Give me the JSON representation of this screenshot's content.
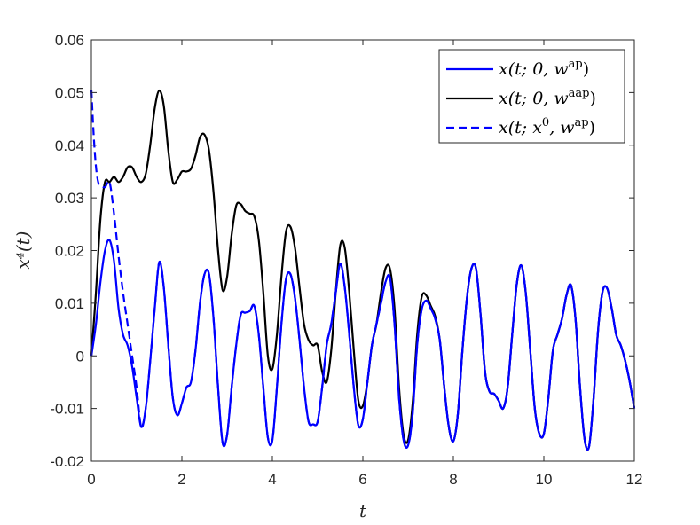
{
  "chart_data": {
    "type": "line",
    "xlabel": "t",
    "ylabel": "x⁴(t)",
    "xlim": [
      0,
      12
    ],
    "ylim": [
      -0.02,
      0.06
    ],
    "xticks": [
      0,
      2,
      4,
      6,
      8,
      10,
      12
    ],
    "yticks": [
      -0.02,
      -0.01,
      0,
      0.01,
      0.02,
      0.03,
      0.04,
      0.05,
      0.06
    ],
    "ytick_labels": [
      "-0.02",
      "-0.01",
      "0",
      "0.01",
      "0.02",
      "0.03",
      "0.04",
      "0.05",
      "0.06"
    ],
    "grid": false,
    "legend_position": "top-right",
    "series": [
      {
        "name": "x(t; 0, w^ap)",
        "color": "#0000ff",
        "style": "solid",
        "x": [
          0,
          0.1,
          0.2,
          0.3,
          0.4,
          0.5,
          0.6,
          0.7,
          0.8,
          0.9,
          1.0,
          1.1,
          1.2,
          1.3,
          1.4,
          1.5,
          1.6,
          1.7,
          1.8,
          1.9,
          2.0,
          2.1,
          2.2,
          2.3,
          2.4,
          2.5,
          2.6,
          2.7,
          2.8,
          2.9,
          3.0,
          3.1,
          3.2,
          3.3,
          3.4,
          3.5,
          3.6,
          3.7,
          3.8,
          3.9,
          4.0,
          4.1,
          4.2,
          4.3,
          4.4,
          4.5,
          4.6,
          4.7,
          4.8,
          4.9,
          5.0,
          5.1,
          5.2,
          5.3,
          5.4,
          5.5,
          5.6,
          5.7,
          5.8,
          5.9,
          6.0,
          6.1,
          6.2,
          6.3,
          6.4,
          6.5,
          6.6,
          6.7,
          6.8,
          6.9,
          7.0,
          7.1,
          7.2,
          7.3,
          7.4,
          7.5,
          7.6,
          7.7,
          7.8,
          7.9,
          8.0,
          8.1,
          8.2,
          8.3,
          8.4,
          8.5,
          8.6,
          8.7,
          8.8,
          8.9,
          9.0,
          9.1,
          9.2,
          9.3,
          9.4,
          9.5,
          9.6,
          9.7,
          9.8,
          9.9,
          10.0,
          10.1,
          10.2,
          10.3,
          10.4,
          10.5,
          10.6,
          10.7,
          10.8,
          10.9,
          11.0,
          11.1,
          11.2,
          11.3,
          11.4,
          11.5,
          11.6,
          11.7,
          11.8,
          11.9,
          12.0
        ],
        "y": [
          0,
          0.006,
          0.014,
          0.02,
          0.022,
          0.018,
          0.009,
          0.004,
          0.002,
          -0.002,
          -0.008,
          -0.0135,
          -0.01,
          -0.001,
          0.009,
          0.0178,
          0.013,
          0.002,
          -0.008,
          -0.0113,
          -0.009,
          -0.006,
          -0.005,
          0.001,
          0.01,
          0.0155,
          0.0155,
          0.007,
          -0.006,
          -0.0165,
          -0.015,
          -0.006,
          0.002,
          0.0078,
          0.0082,
          0.0085,
          0.0095,
          0.004,
          -0.006,
          -0.0155,
          -0.016,
          -0.006,
          0.006,
          0.0145,
          0.0155,
          0.011,
          0.003,
          -0.006,
          -0.0125,
          -0.013,
          -0.0125,
          -0.006,
          0.002,
          0.006,
          0.012,
          0.0175,
          0.013,
          0.004,
          -0.006,
          -0.0132,
          -0.012,
          -0.005,
          0.002,
          0.006,
          0.01,
          0.014,
          0.0148,
          0.006,
          -0.008,
          -0.016,
          -0.017,
          -0.011,
          0.002,
          0.0088,
          0.0105,
          0.009,
          0.007,
          0.003,
          -0.006,
          -0.0135,
          -0.0162,
          -0.011,
          0.001,
          0.011,
          0.0166,
          0.0166,
          0.008,
          -0.003,
          -0.0068,
          -0.0072,
          -0.0085,
          -0.01,
          -0.006,
          0.004,
          0.0135,
          0.0172,
          0.012,
          0.001,
          -0.01,
          -0.0148,
          -0.0148,
          -0.008,
          0.001,
          0.004,
          0.007,
          0.0115,
          0.0134,
          0.007,
          -0.006,
          -0.0158,
          -0.0172,
          -0.008,
          0.005,
          0.0123,
          0.0128,
          0.009,
          0.004,
          0.002,
          -0.001,
          -0.005,
          -0.01
        ]
      },
      {
        "name": "x(t; 0, w^aap)",
        "color": "#000000",
        "style": "solid",
        "x": [
          0,
          0.1,
          0.2,
          0.3,
          0.4,
          0.5,
          0.6,
          0.7,
          0.8,
          0.9,
          1.0,
          1.1,
          1.2,
          1.3,
          1.4,
          1.5,
          1.6,
          1.7,
          1.8,
          1.9,
          2.0,
          2.1,
          2.2,
          2.3,
          2.4,
          2.5,
          2.6,
          2.7,
          2.8,
          2.9,
          3.0,
          3.1,
          3.2,
          3.3,
          3.4,
          3.5,
          3.6,
          3.7,
          3.8,
          3.9,
          4.0,
          4.1,
          4.2,
          4.3,
          4.4,
          4.5,
          4.6,
          4.7,
          4.8,
          4.9,
          5.0,
          5.1,
          5.2,
          5.3,
          5.4,
          5.5,
          5.6,
          5.7,
          5.8,
          5.9,
          6.0,
          6.1,
          6.2,
          6.3,
          6.4,
          6.5,
          6.6,
          6.7,
          6.8,
          6.9,
          7.0,
          7.1,
          7.2,
          7.3,
          7.4,
          7.5,
          7.6,
          7.7,
          7.8,
          7.9,
          8.0,
          8.1,
          8.2,
          8.3,
          8.4,
          8.5,
          8.6,
          8.7,
          8.8,
          8.9,
          9.0,
          9.1,
          9.2,
          9.3,
          9.4,
          9.5,
          9.6,
          9.7,
          9.8,
          9.9,
          10.0,
          10.1,
          10.2,
          10.3,
          10.4,
          10.5,
          10.6,
          10.7,
          10.8,
          10.9,
          11.0,
          11.1,
          11.2,
          11.3,
          11.4,
          11.5,
          11.6,
          11.7,
          11.8,
          11.9,
          12.0
        ],
        "y": [
          0,
          0.012,
          0.026,
          0.033,
          0.033,
          0.034,
          0.033,
          0.034,
          0.0358,
          0.0358,
          0.034,
          0.033,
          0.0345,
          0.04,
          0.047,
          0.0504,
          0.0475,
          0.039,
          0.033,
          0.0335,
          0.035,
          0.035,
          0.0355,
          0.038,
          0.0415,
          0.042,
          0.039,
          0.031,
          0.02,
          0.0125,
          0.015,
          0.023,
          0.0285,
          0.0288,
          0.0275,
          0.027,
          0.0265,
          0.022,
          0.012,
          0.0,
          -0.0025,
          0.004,
          0.015,
          0.0235,
          0.0245,
          0.0205,
          0.013,
          0.006,
          0.003,
          0.002,
          0.002,
          -0.003,
          -0.005,
          0.001,
          0.012,
          0.021,
          0.0205,
          0.012,
          0.001,
          -0.0085,
          -0.0095,
          -0.005,
          0.002,
          0.006,
          0.012,
          0.0166,
          0.0165,
          0.009,
          -0.006,
          -0.015,
          -0.016,
          -0.009,
          0.004,
          0.0112,
          0.0115,
          0.0095,
          0.0075,
          0.003,
          -0.006,
          -0.0135,
          -0.0162,
          -0.011,
          0.001,
          0.011,
          0.0166,
          0.0166,
          0.008,
          -0.003,
          -0.0068,
          -0.0072,
          -0.0085,
          -0.01,
          -0.006,
          0.004,
          0.0135,
          0.0172,
          0.012,
          0.001,
          -0.01,
          -0.0148,
          -0.0148,
          -0.008,
          0.001,
          0.004,
          0.007,
          0.0115,
          0.0134,
          0.007,
          -0.006,
          -0.0158,
          -0.0172,
          -0.008,
          0.005,
          0.0123,
          0.0128,
          0.009,
          0.004,
          0.002,
          -0.001,
          -0.005,
          -0.01
        ]
      },
      {
        "name": "x(t; x^0, w^ap)",
        "color": "#0000ff",
        "style": "dashed",
        "x": [
          0,
          0.05,
          0.1,
          0.15,
          0.2,
          0.3,
          0.4,
          0.5,
          0.6,
          0.7,
          0.8,
          0.9,
          1.0,
          1.1,
          1.2,
          1.3,
          1.4,
          1.5,
          1.6,
          1.7,
          1.8,
          1.9,
          2.0,
          2.1,
          2.2,
          2.3,
          2.4,
          2.5,
          2.6,
          2.7,
          2.8,
          2.9,
          3.0,
          3.1,
          3.2,
          3.3,
          3.4,
          3.5,
          3.6,
          3.7,
          3.8,
          3.9,
          4.0,
          4.1,
          4.2,
          4.3,
          4.4,
          4.5,
          4.6,
          4.7,
          4.8,
          4.9,
          5.0,
          5.1,
          5.2,
          5.3,
          5.4,
          5.5,
          5.6,
          5.7,
          5.8,
          5.9,
          6.0,
          6.1,
          6.2,
          6.3,
          6.4,
          6.5,
          6.6,
          6.7,
          6.8,
          6.9,
          7.0,
          7.1,
          7.2,
          7.3,
          7.4,
          7.5,
          7.6,
          7.7,
          7.8,
          7.9,
          8.0,
          8.1,
          8.2,
          8.3,
          8.4,
          8.5,
          8.6,
          8.7,
          8.8,
          8.9,
          9.0,
          9.1,
          9.2,
          9.3,
          9.4,
          9.5,
          9.6,
          9.7,
          9.8,
          9.9,
          10.0,
          10.1,
          10.2,
          10.3,
          10.4,
          10.5,
          10.6,
          10.7,
          10.8,
          10.9,
          11.0,
          11.1,
          11.2,
          11.3,
          11.4,
          11.5,
          11.6,
          11.7,
          11.8,
          11.9,
          12.0
        ],
        "y": [
          0.0505,
          0.042,
          0.036,
          0.033,
          0.0325,
          0.032,
          0.033,
          0.027,
          0.019,
          0.012,
          0.006,
          0.0,
          -0.006,
          -0.0135,
          -0.01,
          -0.001,
          0.009,
          0.0178,
          0.013,
          0.002,
          -0.008,
          -0.0113,
          -0.009,
          -0.006,
          -0.005,
          0.001,
          0.01,
          0.0155,
          0.0155,
          0.007,
          -0.006,
          -0.0165,
          -0.015,
          -0.006,
          0.002,
          0.0078,
          0.0082,
          0.0085,
          0.0095,
          0.004,
          -0.006,
          -0.0155,
          -0.016,
          -0.006,
          0.006,
          0.0145,
          0.0155,
          0.011,
          0.003,
          -0.006,
          -0.0125,
          -0.013,
          -0.0125,
          -0.006,
          0.002,
          0.006,
          0.012,
          0.0175,
          0.013,
          0.004,
          -0.006,
          -0.0132,
          -0.012,
          -0.005,
          0.002,
          0.006,
          0.01,
          0.014,
          0.0148,
          0.006,
          -0.008,
          -0.016,
          -0.017,
          -0.011,
          0.002,
          0.0088,
          0.0105,
          0.009,
          0.007,
          0.003,
          -0.006,
          -0.0135,
          -0.0162,
          -0.011,
          0.001,
          0.011,
          0.0166,
          0.0166,
          0.008,
          -0.003,
          -0.0068,
          -0.0072,
          -0.0085,
          -0.01,
          -0.006,
          0.004,
          0.0135,
          0.0172,
          0.012,
          0.001,
          -0.01,
          -0.0148,
          -0.0148,
          -0.008,
          0.001,
          0.004,
          0.007,
          0.0115,
          0.0134,
          0.007,
          -0.006,
          -0.0158,
          -0.0172,
          -0.008,
          0.005,
          0.0123,
          0.0128,
          0.009,
          0.004,
          0.002,
          -0.001,
          -0.005,
          -0.01
        ]
      }
    ]
  }
}
